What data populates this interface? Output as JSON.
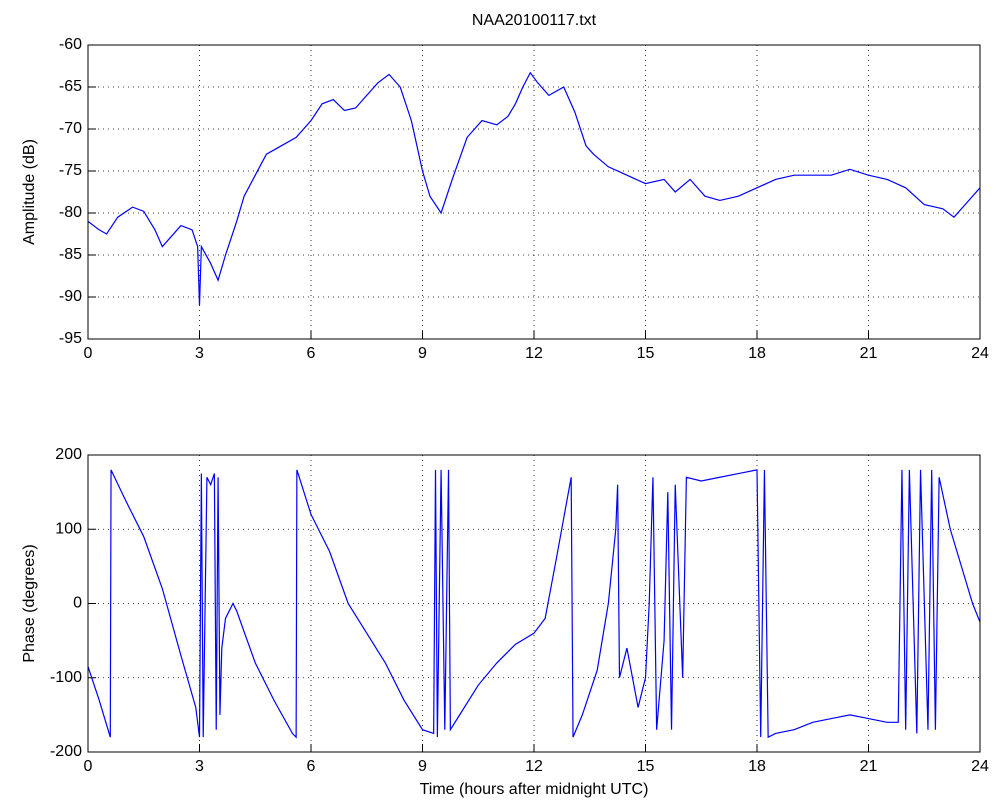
{
  "chart_data": [
    {
      "type": "line",
      "title": "NAA20100117.txt",
      "ylabel": "Amplitude (dB)",
      "x": [
        0,
        0.3,
        0.5,
        0.8,
        1.2,
        1.5,
        1.8,
        2.0,
        2.2,
        2.5,
        2.8,
        2.95,
        3.0,
        3.05,
        3.3,
        3.5,
        3.7,
        4.0,
        4.2,
        4.5,
        4.8,
        5.2,
        5.6,
        6.0,
        6.3,
        6.6,
        6.9,
        7.2,
        7.5,
        7.8,
        8.1,
        8.4,
        8.7,
        9.0,
        9.2,
        9.5,
        9.8,
        10.2,
        10.6,
        11.0,
        11.3,
        11.5,
        11.7,
        11.9,
        12.1,
        12.4,
        12.8,
        13.1,
        13.4,
        13.6,
        14.0,
        14.5,
        15.0,
        15.5,
        15.8,
        16.2,
        16.6,
        17.0,
        17.5,
        18.0,
        18.5,
        19.0,
        19.5,
        20.0,
        20.5,
        21.0,
        21.5,
        22.0,
        22.5,
        23.0,
        23.3,
        23.6,
        24.0
      ],
      "series": [
        {
          "color": "#0000ff",
          "values": [
            -81,
            -82,
            -82.5,
            -80.5,
            -79.3,
            -79.8,
            -82,
            -84,
            -83,
            -81.5,
            -82,
            -84,
            -91,
            -84,
            -86,
            -88,
            -85,
            -81,
            -78,
            -75.5,
            -73,
            -72,
            -71,
            -69,
            -67,
            -66.5,
            -67.8,
            -67.5,
            -66,
            -64.5,
            -63.5,
            -65,
            -69,
            -75,
            -78,
            -80,
            -76,
            -71,
            -69,
            -69.5,
            -68.5,
            -67,
            -65,
            -63.3,
            -64.5,
            -66,
            -65,
            -68,
            -72,
            -73,
            -74.5,
            -75.5,
            -76.5,
            -76,
            -77.5,
            -76,
            -78,
            -78.5,
            -78,
            -77,
            -76,
            -75.5,
            -75.5,
            -75.5,
            -74.8,
            -75.5,
            -76,
            -77,
            -79,
            -79.5,
            -80.5,
            -79,
            -77
          ]
        }
      ],
      "xlim": [
        0,
        24
      ],
      "xticks": [
        0,
        3,
        6,
        9,
        12,
        15,
        18,
        21,
        24
      ],
      "ylim": [
        -95,
        -60
      ],
      "yticks": [
        -95,
        -90,
        -85,
        -80,
        -75,
        -70,
        -65,
        -60
      ],
      "grid": true
    },
    {
      "type": "line",
      "ylabel": "Phase (degrees)",
      "xlabel": "Time (hours after midnight UTC)",
      "x": [
        0,
        0.3,
        0.6,
        0.62,
        1.0,
        1.5,
        2.0,
        2.5,
        2.9,
        3.0,
        3.05,
        3.1,
        3.2,
        3.3,
        3.4,
        3.45,
        3.5,
        3.55,
        3.6,
        3.7,
        3.9,
        4.0,
        4.5,
        5.0,
        5.5,
        5.6,
        5.62,
        6.0,
        6.5,
        7.0,
        7.5,
        8.0,
        8.5,
        9.0,
        9.3,
        9.35,
        9.4,
        9.5,
        9.6,
        9.7,
        9.75,
        10.0,
        10.5,
        11.0,
        11.5,
        12.0,
        12.3,
        12.6,
        13.0,
        13.05,
        13.3,
        13.7,
        14.0,
        14.2,
        14.25,
        14.3,
        14.5,
        14.8,
        15.0,
        15.1,
        15.2,
        15.3,
        15.5,
        15.6,
        15.7,
        15.8,
        16.0,
        16.1,
        16.5,
        17.0,
        17.5,
        18.0,
        18.1,
        18.2,
        18.3,
        18.5,
        19.0,
        19.5,
        20.0,
        20.5,
        21.0,
        21.5,
        21.8,
        21.9,
        22.0,
        22.1,
        22.3,
        22.4,
        22.6,
        22.7,
        22.8,
        22.9,
        23.2,
        23.5,
        23.8,
        24.0
      ],
      "series": [
        {
          "color": "#0000ff",
          "values": [
            -85,
            -130,
            -180,
            180,
            140,
            90,
            20,
            -70,
            -140,
            -180,
            175,
            -180,
            170,
            160,
            175,
            -170,
            170,
            -150,
            -60,
            -20,
            0,
            -10,
            -80,
            -130,
            -175,
            -180,
            180,
            120,
            70,
            0,
            -40,
            -80,
            -130,
            -170,
            -175,
            180,
            -180,
            180,
            -170,
            180,
            -170,
            -150,
            -110,
            -80,
            -55,
            -40,
            -20,
            60,
            170,
            -180,
            -150,
            -90,
            0,
            100,
            160,
            -100,
            -60,
            -140,
            -100,
            0,
            170,
            -170,
            -50,
            150,
            -170,
            160,
            -100,
            170,
            165,
            170,
            175,
            180,
            -180,
            180,
            -180,
            -175,
            -170,
            -160,
            -155,
            -150,
            -155,
            -160,
            -160,
            180,
            -170,
            180,
            -175,
            180,
            -170,
            180,
            -170,
            170,
            100,
            50,
            0,
            -25
          ]
        }
      ],
      "xlim": [
        0,
        24
      ],
      "xticks": [
        0,
        3,
        6,
        9,
        12,
        15,
        18,
        21,
        24
      ],
      "ylim": [
        -200,
        200
      ],
      "yticks": [
        -200,
        -100,
        0,
        100,
        200
      ],
      "grid": true
    }
  ]
}
